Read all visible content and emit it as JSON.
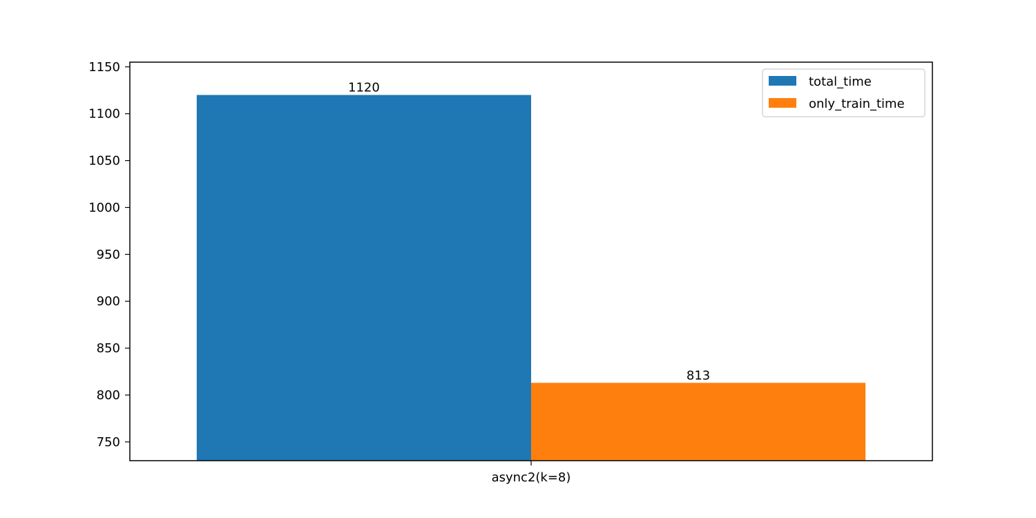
{
  "chart_data": {
    "type": "bar",
    "categories": [
      "async2(k=8)"
    ],
    "series": [
      {
        "name": "total_time",
        "values": [
          1120
        ],
        "color": "#1f77b4"
      },
      {
        "name": "only_train_time",
        "values": [
          813
        ],
        "color": "#ff7f0e"
      }
    ],
    "title": "",
    "xlabel": "",
    "ylabel": "",
    "ylim": [
      730,
      1155
    ],
    "yticks": [
      750,
      800,
      850,
      900,
      950,
      1000,
      1050,
      1100,
      1150
    ],
    "grid": false,
    "legend": "top-right"
  }
}
